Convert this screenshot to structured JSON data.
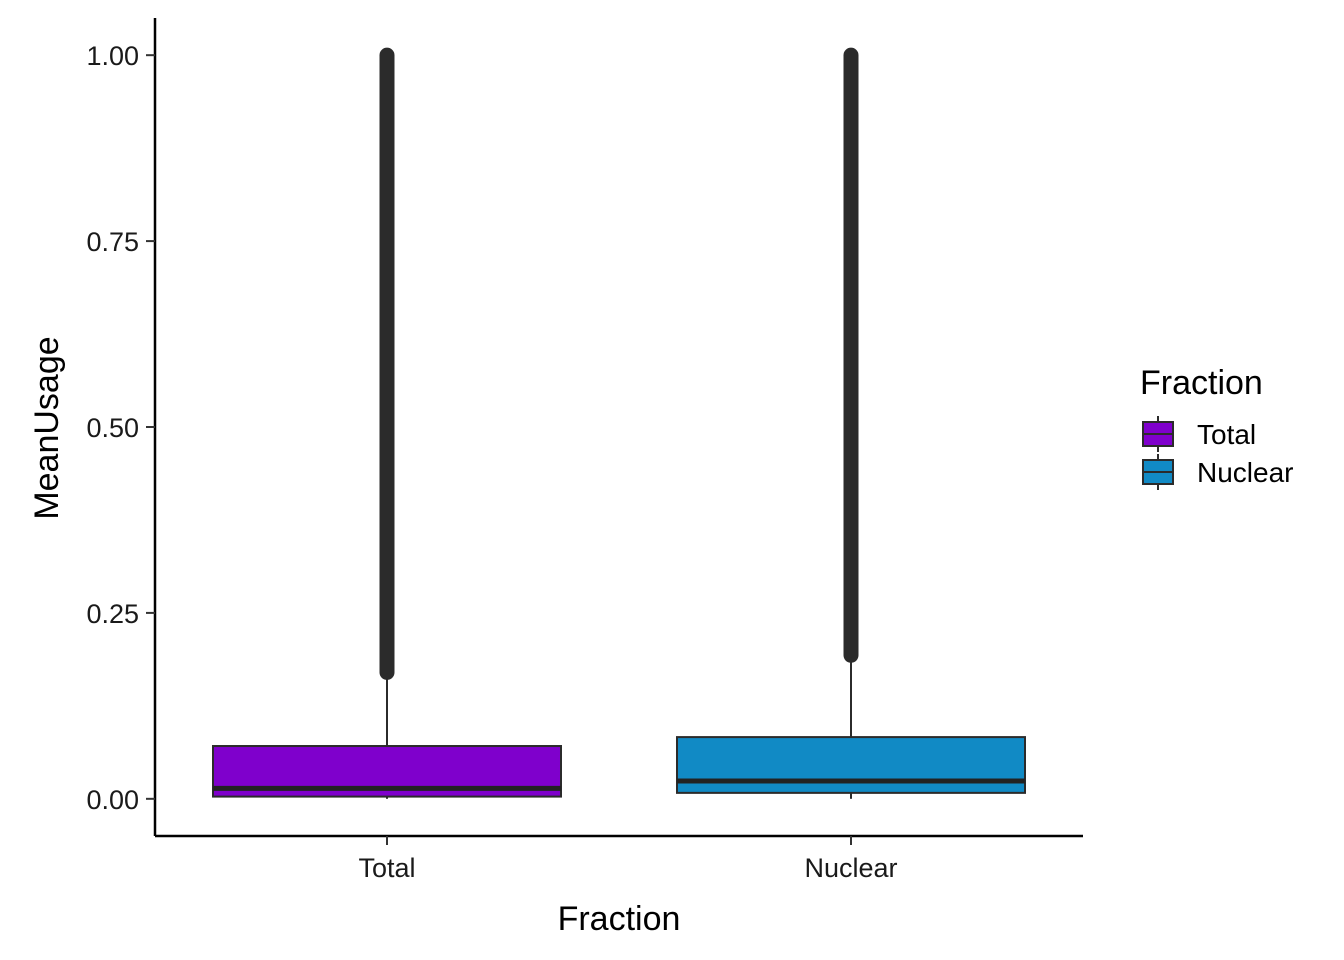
{
  "chart_data": {
    "type": "boxplot",
    "title": "",
    "xlabel": "Fraction",
    "ylabel": "MeanUsage",
    "categories": [
      "Total",
      "Nuclear"
    ],
    "ylim": [
      -0.05,
      1.05
    ],
    "yticks": [
      0.0,
      0.25,
      0.5,
      0.75,
      1.0
    ],
    "ytick_labels": [
      "0.00",
      "0.25",
      "0.50",
      "0.75",
      "1.00"
    ],
    "series": [
      {
        "name": "Total",
        "color": "#7F00CC",
        "q1": 0.003,
        "median": 0.014,
        "q3": 0.071,
        "whisker_low": 0.0,
        "whisker_high": 0.168,
        "outlier_range": [
          0.17,
          1.0
        ]
      },
      {
        "name": "Nuclear",
        "color": "#118AC5",
        "q1": 0.008,
        "median": 0.024,
        "q3": 0.083,
        "whisker_low": 0.0,
        "whisker_high": 0.19,
        "outlier_range": [
          0.193,
          1.0
        ]
      }
    ],
    "legend": {
      "title": "Fraction",
      "position": "right",
      "entries": [
        "Total",
        "Nuclear"
      ]
    },
    "grid": false
  }
}
